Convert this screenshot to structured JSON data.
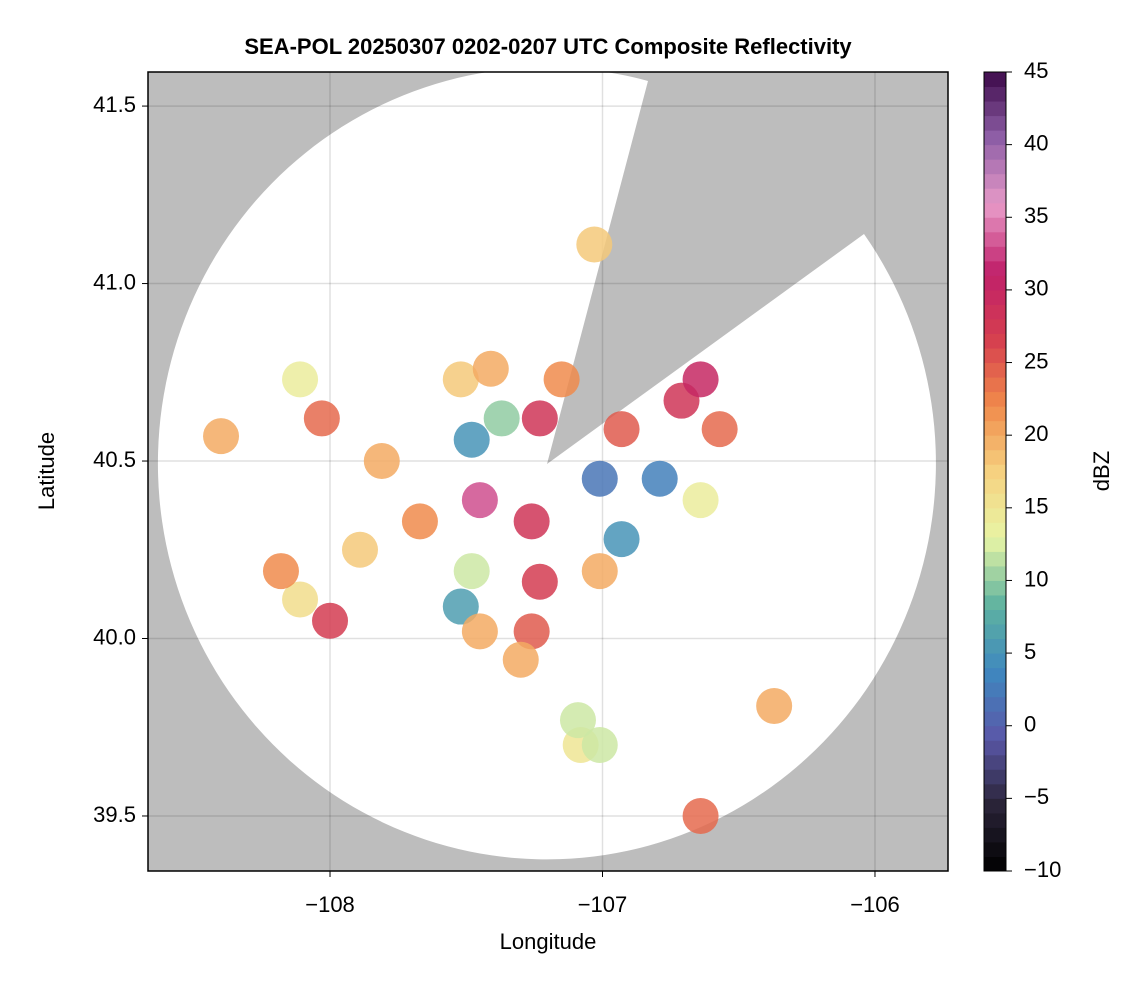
{
  "chart_data": {
    "type": "scatter",
    "title": "SEA-POL 20250307 0202-0207 UTC Composite Reflectivity",
    "x_label": "Longitude",
    "y_label": "Latitude",
    "colorbar_label": "dBZ",
    "xlim": [
      -108.668,
      -105.732
    ],
    "ylim": [
      39.345,
      41.596
    ],
    "xticks": [
      {
        "value": -108,
        "label": "−108"
      },
      {
        "value": -107,
        "label": "−107"
      },
      {
        "value": -106,
        "label": "−106"
      }
    ],
    "yticks": [
      39.5,
      {
        "value": 40,
        "label": "40.0"
      },
      40.5,
      {
        "value": 41,
        "label": "41.0"
      },
      41.5
    ],
    "clim": [
      -10,
      45
    ],
    "cticks": [
      {
        "value": -10,
        "label": "−10"
      },
      {
        "value": -5,
        "label": "−5"
      },
      0,
      5,
      10,
      15,
      20,
      25,
      30,
      35,
      40,
      45
    ],
    "colormap": [
      "#000000",
      "#2a2438",
      "#5a58a8",
      "#3f88bf",
      "#5fb3a0",
      "#e8f5a5",
      "#f6d180",
      "#f08a4b",
      "#d53e4f",
      "#c0206a",
      "#e89ac8",
      "#9060a8",
      "#3d0a4a"
    ],
    "grid": true,
    "series": [
      {
        "x": [
          -107.26,
          -107.23,
          -107.26,
          -107.3,
          -107.45,
          -107.67,
          -107.89,
          -108.11,
          -108.0,
          -108.18,
          -107.23,
          -107.15,
          -107.37,
          -107.48,
          -106.93,
          -106.71,
          -106.64,
          -106.57,
          -106.79,
          -107.01,
          -106.93,
          -107.01,
          -106.64,
          -107.48,
          -107.52,
          -107.45,
          -108.03,
          -107.81,
          -108.4,
          -108.11,
          -107.52,
          -107.41,
          -107.03,
          -106.37,
          -106.64,
          -107.08,
          -107.01,
          -107.09
        ],
        "y": [
          40.33,
          40.16,
          40.02,
          39.94,
          40.39,
          40.33,
          40.25,
          40.11,
          40.05,
          40.19,
          40.62,
          40.73,
          40.62,
          40.56,
          40.59,
          40.67,
          40.73,
          40.59,
          40.45,
          40.45,
          40.28,
          40.19,
          40.39,
          40.19,
          40.09,
          40.02,
          40.62,
          40.5,
          40.57,
          40.73,
          40.73,
          40.76,
          41.11,
          39.81,
          39.5,
          39.7,
          39.7,
          39.77
        ],
        "values": [
          28,
          27,
          25,
          20,
          33,
          22,
          18,
          16,
          27,
          22,
          28,
          22,
          10,
          5,
          25,
          28,
          30,
          24,
          3,
          2,
          5,
          20,
          14,
          12,
          6,
          20,
          24,
          20,
          20,
          14,
          18,
          20,
          18,
          20,
          24,
          15,
          12,
          12
        ]
      }
    ]
  }
}
